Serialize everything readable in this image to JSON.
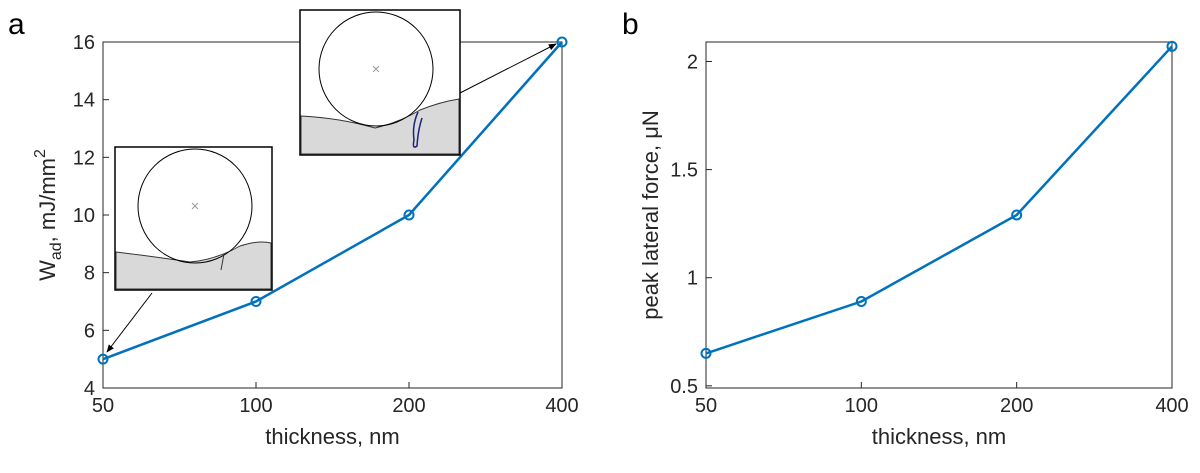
{
  "chart_data": [
    {
      "type": "line",
      "panel": "a",
      "xlabel": "thickness, nm",
      "ylabel": {
        "main": "W",
        "sub": "ad",
        "rest": ", mJ/mm",
        "sup": "2"
      },
      "x": [
        50,
        100,
        200,
        400
      ],
      "values": [
        5,
        7,
        10,
        16
      ],
      "color": "#0072bd",
      "xscale": "log",
      "xlim": [
        50,
        400
      ],
      "xticks": [
        50,
        100,
        200,
        400
      ],
      "ylim": [
        4,
        16
      ],
      "yticks": [
        4,
        6,
        8,
        10,
        12,
        14,
        16
      ]
    },
    {
      "type": "line",
      "panel": "b",
      "xlabel": "thickness, nm",
      "ylabel": {
        "main": "peak lateral force, μN"
      },
      "x": [
        50,
        100,
        200,
        400
      ],
      "values": [
        0.65,
        0.89,
        1.29,
        2.07
      ],
      "color": "#0072bd",
      "xscale": "log",
      "xlim": [
        50,
        400
      ],
      "xticks": [
        50,
        100,
        200,
        400
      ],
      "ylim": [
        0.49,
        2.09
      ],
      "yticks": [
        0.5,
        1,
        1.5,
        2
      ]
    }
  ]
}
